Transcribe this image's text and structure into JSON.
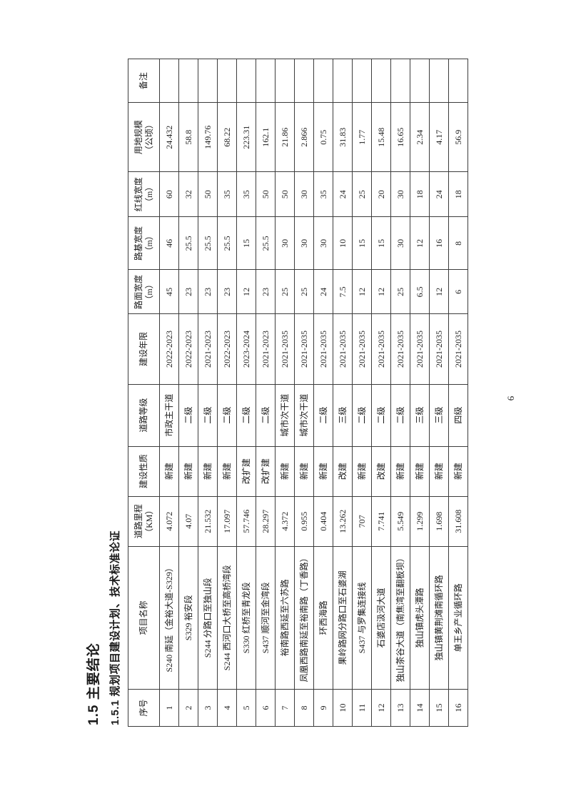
{
  "page": {
    "number": "6"
  },
  "headings": {
    "section": "1.5 主要结论",
    "subsection": "1.5.1 规划项目建设计划、技术标准论证"
  },
  "table": {
    "columns": [
      "序号",
      "项目名称",
      "道路里程\n（KM）",
      "建设性质",
      "道路等级",
      "建设年限",
      "路面宽度\n（m）",
      "路基宽度\n（m）",
      "红线宽度\n（m）",
      "用地规模\n（公顷）",
      "备注"
    ],
    "rows": [
      [
        "1",
        "S240 南延（金裕大道-S329）",
        "4.072",
        "新建",
        "市政主干道",
        "2022-2023",
        "45",
        "46",
        "60",
        "24.432",
        ""
      ],
      [
        "2",
        "S329 裕安段",
        "4.07",
        "新建",
        "二级",
        "2022-2023",
        "23",
        "25.5",
        "32",
        "58.8",
        ""
      ],
      [
        "3",
        "S244 分路口至独山段",
        "21.532",
        "新建",
        "二级",
        "2021-2023",
        "23",
        "25.5",
        "50",
        "149.76",
        ""
      ],
      [
        "4",
        "S244 西河口大桥至高桥湾段",
        "17.097",
        "新建",
        "二级",
        "2022-2023",
        "23",
        "25.5",
        "35",
        "68.22",
        ""
      ],
      [
        "5",
        "S330 红桥至青龙段",
        "57.746",
        "改扩建",
        "二级",
        "2023-2024",
        "12",
        "15",
        "35",
        "223.31",
        ""
      ],
      [
        "6",
        "S437 顺河至金湾段",
        "28.297",
        "改扩建",
        "二级",
        "2021-2023",
        "23",
        "25.5",
        "50",
        "162.1",
        ""
      ],
      [
        "7",
        "裕南路西延至六苏路",
        "4.372",
        "新建",
        "城市次干道",
        "2021-2035",
        "25",
        "30",
        "50",
        "21.86",
        ""
      ],
      [
        "8",
        "凤凰西路南延至裕南路（丁香路）",
        "0.955",
        "新建",
        "城市次干道",
        "2021-2035",
        "25",
        "30",
        "30",
        "2.866",
        ""
      ],
      [
        "9",
        "环西海路",
        "0.404",
        "新建",
        "二级",
        "2021-2035",
        "24",
        "30",
        "35",
        "0.75",
        ""
      ],
      [
        "10",
        "果岭路网分路口至石婆湖",
        "13.262",
        "改建",
        "三级",
        "2021-2035",
        "7.5",
        "10",
        "24",
        "31.83",
        ""
      ],
      [
        "11",
        "S437 与罗集连接线",
        "707",
        "新建",
        "二级",
        "2021-2035",
        "12",
        "15",
        "25",
        "1.77",
        ""
      ],
      [
        "12",
        "石婆店汲河大道",
        "7.741",
        "改建",
        "二级",
        "2021-2035",
        "12",
        "15",
        "20",
        "15.48",
        ""
      ],
      [
        "13",
        "独山茶谷大道（南焦湾至翻板坝）",
        "5.549",
        "新建",
        "二级",
        "2021-2035",
        "25",
        "30",
        "30",
        "16.65",
        ""
      ],
      [
        "14",
        "独山镇虎头潭路",
        "1.299",
        "新建",
        "三级",
        "2021-2035",
        "6.5",
        "12",
        "18",
        "2.34",
        ""
      ],
      [
        "15",
        "独山镇黄荆滩南循环路",
        "1.698",
        "新建",
        "三级",
        "2021-2035",
        "12",
        "16",
        "24",
        "4.17",
        ""
      ],
      [
        "16",
        "单王乡产业循环路",
        "31.608",
        "新建",
        "四级",
        "2021-2035",
        "6",
        "8",
        "18",
        "56.9",
        ""
      ]
    ]
  }
}
